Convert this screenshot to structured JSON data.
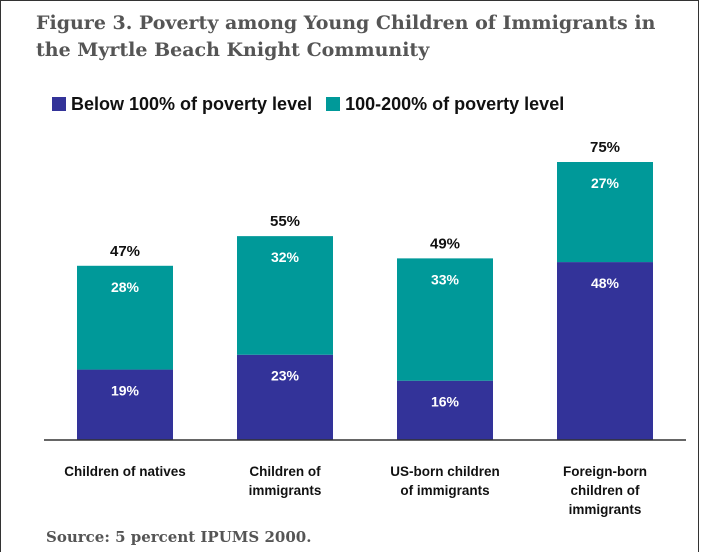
{
  "title": "Figure 3. Poverty among Young Children of Immigrants in the Myrtle Beach Knight Community",
  "source": "Source: 5 percent IPUMS 2000.",
  "colors": {
    "below": "#333399",
    "between": "#009999"
  },
  "chart_data": {
    "type": "bar",
    "stacked": true,
    "categories": [
      "Children of natives",
      "Children of immigrants",
      "US-born children of immigrants",
      "Foreign-born children of immigrants"
    ],
    "category_lines": [
      [
        "Children of natives"
      ],
      [
        "Children of",
        "immigrants"
      ],
      [
        "US-born children",
        "of immigrants"
      ],
      [
        "Foreign-born",
        "children of",
        "immigrants"
      ]
    ],
    "series": [
      {
        "name": "Below 100% of poverty level",
        "values": [
          19,
          23,
          16,
          48
        ],
        "labels": [
          "19%",
          "23%",
          "16%",
          "48%"
        ]
      },
      {
        "name": "100-200% of poverty level",
        "values": [
          28,
          32,
          33,
          27
        ],
        "labels": [
          "28%",
          "32%",
          "33%",
          "27%"
        ]
      }
    ],
    "totals": [
      47,
      55,
      49,
      75
    ],
    "total_labels": [
      "47%",
      "55%",
      "49%",
      "75%"
    ],
    "ylim": [
      0,
      80
    ],
    "legend": "top",
    "grid": false
  }
}
